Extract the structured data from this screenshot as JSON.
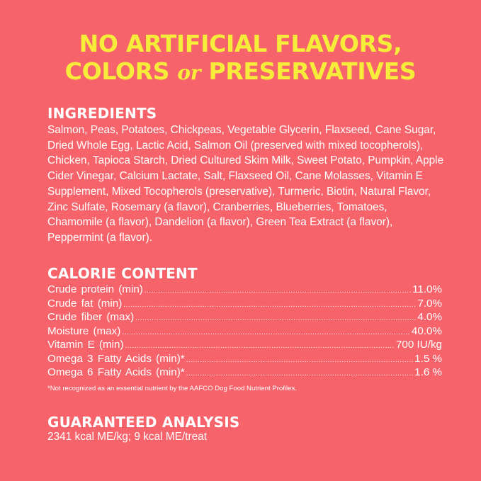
{
  "headline": {
    "line1": "NO ARTIFICIAL FLAVORS,",
    "line2_before": "COLORS ",
    "line2_or": "or",
    "line2_after": " PRESERVATIVES",
    "color": "#f6ec3a"
  },
  "background_color": "#f7636a",
  "ingredients": {
    "title": "INGREDIENTS",
    "text": "Salmon, Peas, Potatoes, Chickpeas, Vegetable Glycerin, Flaxseed, Cane Sugar, Dried Whole Egg, Lactic Acid, Salmon Oil (preserved with mixed tocopherols), Chicken, Tapioca Starch, Dried Cultured Skim Milk, Sweet Potato, Pumpkin, Apple Cider Vinegar, Calcium Lactate, Salt, Flaxseed Oil, Cane Molasses, Vitamin E Supplement, Mixed Tocopherols (preservative), Turmeric, Biotin, Natural Flavor, Zinc Sulfate, Rosemary (a flavor), Cranberries, Blueberries, Tomatoes, Chamomile (a flavor), Dandelion (a flavor), Green Tea Extract (a flavor), Peppermint (a flavor)."
  },
  "calorie_content": {
    "title": "CALORIE CONTENT",
    "rows": [
      {
        "label": "Crude protein (min)",
        "value": "11.0%"
      },
      {
        "label": "Crude fat (min)",
        "value": "7.0%"
      },
      {
        "label": "Crude fiber (max)",
        "value": "4.0%"
      },
      {
        "label": "Moisture (max)",
        "value": "40.0%"
      },
      {
        "label": "Vitamin E (min)",
        "value": "700 IU/kg"
      },
      {
        "label": "Omega 3 Fatty Acids (min)*",
        "value": "1.5 %"
      },
      {
        "label": "Omega 6 Fatty Acids (min)*",
        "value": "1.6 %"
      }
    ],
    "footnote": "*Not recognized as an essential nutrient by the AAFCO Dog Food Nutrient Profiles."
  },
  "guaranteed_analysis": {
    "title": "GUARANTEED ANALYSIS",
    "text": "2341 kcal ME/kg; 9 kcal ME/treat"
  }
}
